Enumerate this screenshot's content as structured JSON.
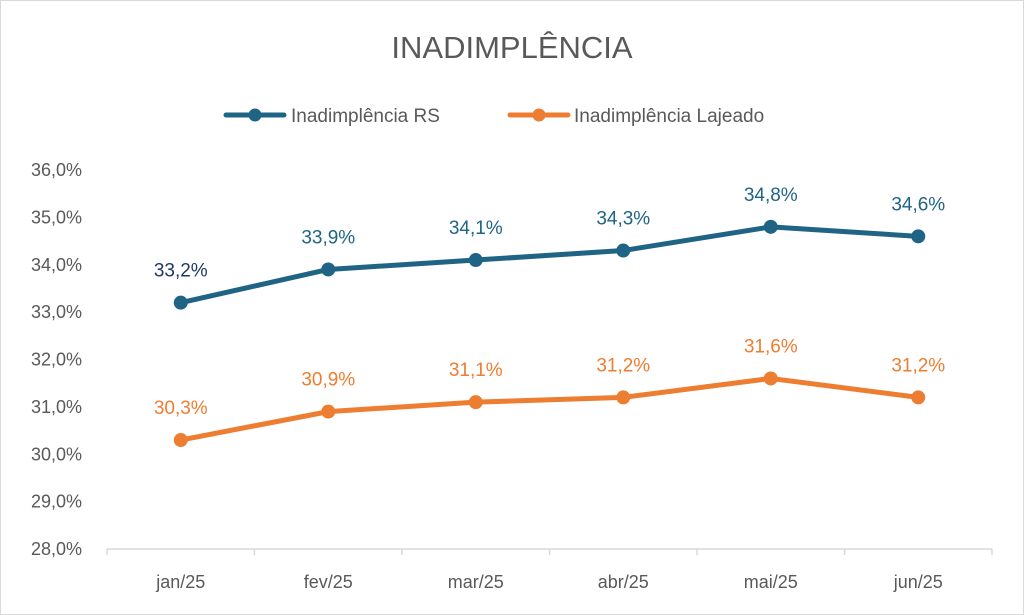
{
  "chart_data": {
    "type": "line",
    "title": "INADIMPLÊNCIA",
    "categories": [
      "jan/25",
      "fev/25",
      "mar/25",
      "abr/25",
      "mai/25",
      "jun/25"
    ],
    "ylim": [
      28.0,
      36.0
    ],
    "yticks": [
      28.0,
      29.0,
      30.0,
      31.0,
      32.0,
      33.0,
      34.0,
      35.0,
      36.0
    ],
    "ytick_labels": [
      "28,0%",
      "29,0%",
      "30,0%",
      "31,0%",
      "32,0%",
      "33,0%",
      "34,0%",
      "35,0%",
      "36,0%"
    ],
    "grid": false,
    "legend_position": "top",
    "series": [
      {
        "name": "Inadimplência RS",
        "color": "#1f6485",
        "values": [
          33.2,
          33.9,
          34.1,
          34.3,
          34.8,
          34.6
        ],
        "labels": [
          "33,2%",
          "33,9%",
          "34,1%",
          "34,3%",
          "34,8%",
          "34,6%"
        ],
        "label_colors": [
          "#1f3864",
          "#1f6485",
          "#1f6485",
          "#1f6485",
          "#1f6485",
          "#1f6485"
        ]
      },
      {
        "name": "Inadimplência Lajeado",
        "color": "#ed7d31",
        "values": [
          30.3,
          30.9,
          31.1,
          31.2,
          31.6,
          31.2
        ],
        "labels": [
          "30,3%",
          "30,9%",
          "31,1%",
          "31,2%",
          "31,6%",
          "31,2%"
        ],
        "label_colors": [
          "#ed7d31",
          "#ed7d31",
          "#ed7d31",
          "#ed7d31",
          "#ed7d31",
          "#ed7d31"
        ]
      }
    ]
  }
}
